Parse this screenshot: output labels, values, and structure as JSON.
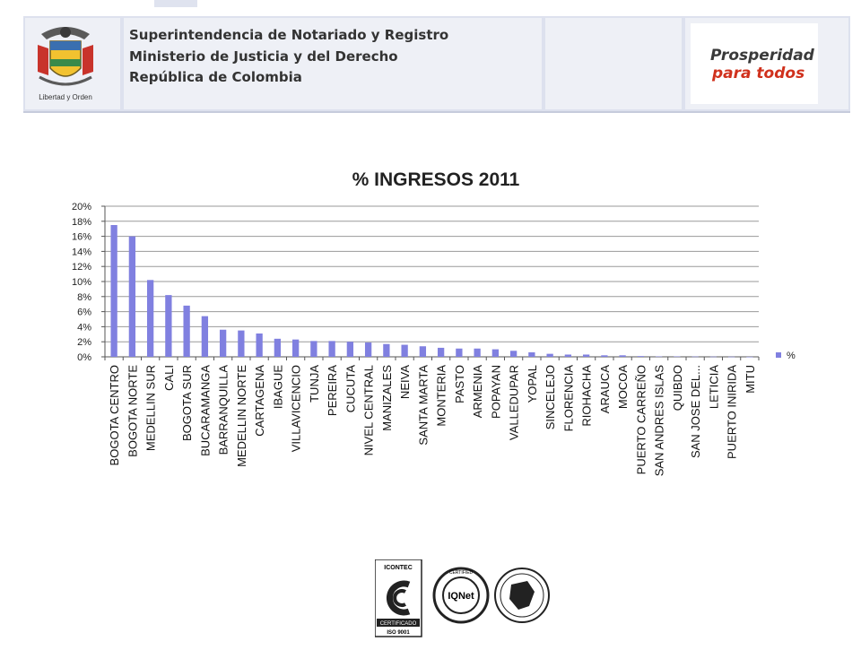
{
  "header": {
    "org_line1": "Superintendencia de Notariado y Registro",
    "org_line2": "Ministerio de Justicia y del Derecho",
    "org_line3": "República de Colombia",
    "coat_motto": "Libertad y Orden",
    "brand_line1": "Prosperidad",
    "brand_line2": "para todos"
  },
  "chart_data": {
    "type": "bar",
    "title": "% INGRESOS 2011",
    "xlabel": "",
    "ylabel": "",
    "ylim": [
      0,
      0.2
    ],
    "yticks": [
      "0%",
      "2%",
      "4%",
      "6%",
      "8%",
      "10%",
      "12%",
      "14%",
      "16%",
      "18%",
      "20%"
    ],
    "grid": true,
    "legend_position": "right",
    "bar_color": "#8080e0",
    "categories": [
      "BOGOTA CENTRO",
      "BOGOTA NORTE",
      "MEDELLIN SUR",
      "CALI",
      "BOGOTA SUR",
      "BUCARAMANGA",
      "BARRANQUILLA",
      "MEDELLIN NORTE",
      "CARTAGENA",
      "IBAGUE",
      "VILLAVICENCIO",
      "TUNJA",
      "PEREIRA",
      "CUCUTA",
      "NIVEL CENTRAL",
      "MANIZALES",
      "NEIVA",
      "SANTA MARTA",
      "MONTERIA",
      "PASTO",
      "ARMENIA",
      "POPAYAN",
      "VALLEDUPAR",
      "YOPAL",
      "SINCELEJO",
      "FLORENCIA",
      "RIOHACHA",
      "ARAUCA",
      "MOCOA",
      "PUERTO CARREÑO",
      "SAN ANDRES ISLAS",
      "QUIBDO",
      "SAN JOSE DEL...",
      "LETICIA",
      "PUERTO INIRIDA",
      "MITU"
    ],
    "series": [
      {
        "name": "%",
        "values": [
          0.175,
          0.16,
          0.102,
          0.082,
          0.068,
          0.054,
          0.036,
          0.035,
          0.031,
          0.024,
          0.023,
          0.021,
          0.021,
          0.02,
          0.019,
          0.017,
          0.016,
          0.014,
          0.012,
          0.011,
          0.011,
          0.01,
          0.008,
          0.006,
          0.004,
          0.003,
          0.003,
          0.002,
          0.002,
          0.001,
          0.0005,
          0.0005,
          0.0004,
          0.0003,
          0.0002,
          0.0001
        ]
      }
    ]
  },
  "footer": {
    "cert1_label": "ICONTEC",
    "cert1_sub": "CERTIFICADO",
    "cert1_std": "ISO 9001",
    "cert2_label": "IQNet",
    "cert2_sub": "CERTIFIED"
  }
}
